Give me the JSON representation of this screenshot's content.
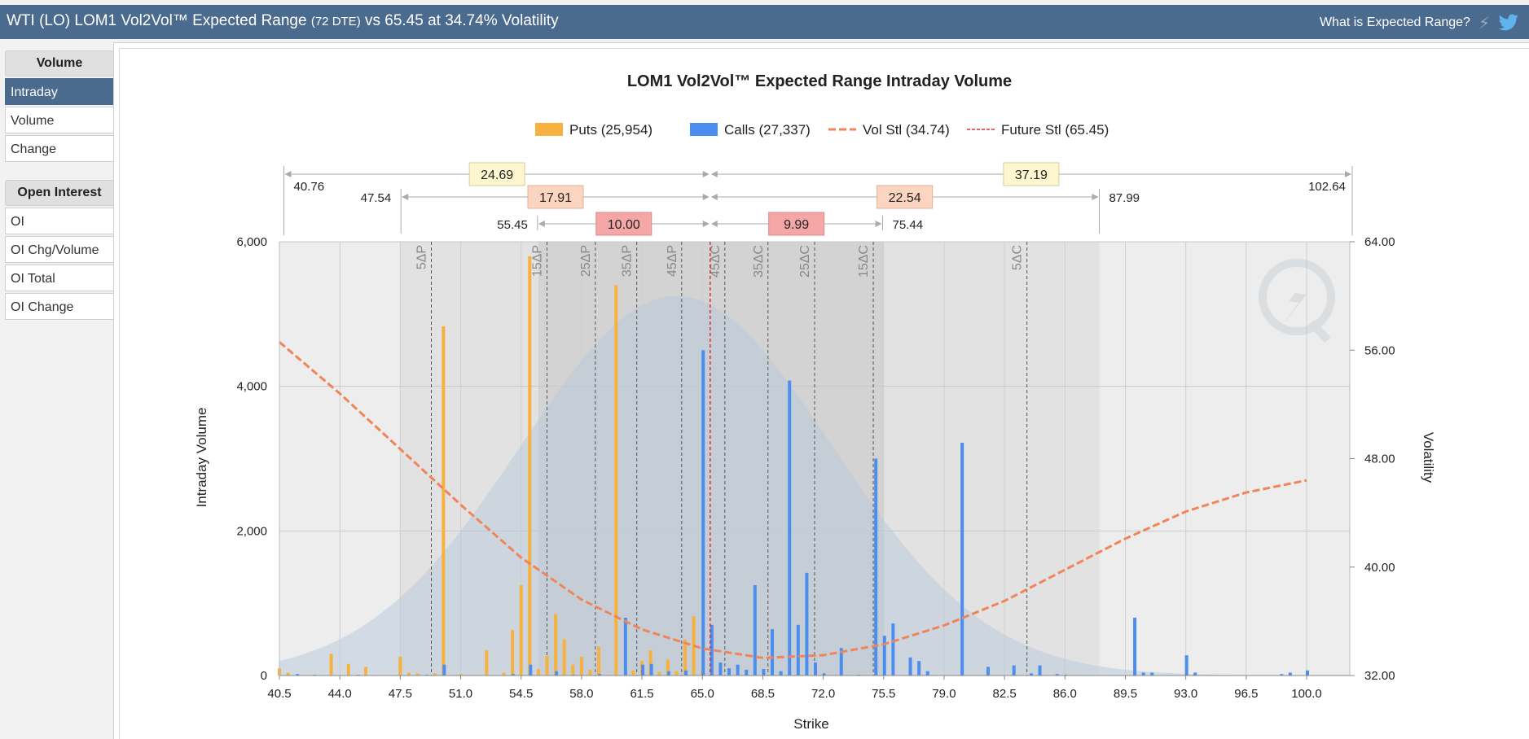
{
  "header": {
    "title_main": "WTI (LO) LOM1 Vol2Vol™ Expected Range",
    "title_dte": "(72 DTE)",
    "title_tail": "vs 65.45 at 34.74% Volatility",
    "help_link": "What is Expected Range?",
    "icons": [
      "lightning-icon",
      "twitter-bird-icon"
    ]
  },
  "sidebar": {
    "volume_title": "Volume",
    "volume_items": [
      "Intraday",
      "Volume",
      "Change"
    ],
    "active_item": "Intraday",
    "oi_title": "Open Interest",
    "oi_items": [
      "OI",
      "OI Chg/Volume",
      "OI Total",
      "OI Change"
    ]
  },
  "colors": {
    "puts": "#f7b13e",
    "calls": "#4b8ef0",
    "vol": "#f0845a",
    "future": "#e03030",
    "header": "#4a6a8e"
  },
  "chart_data": {
    "type": "bar",
    "title": "LOM1 Vol2Vol™ Expected Range Intraday Volume",
    "xlabel": "Strike",
    "ylabel": "Intraday Volume",
    "y2label": "Volatility",
    "xlim": [
      40.5,
      102.5
    ],
    "ylim": [
      0,
      6000
    ],
    "y2lim": [
      32,
      64
    ],
    "x_ticks": [
      "40.5",
      "44.0",
      "47.5",
      "51.0",
      "54.5",
      "58.0",
      "61.5",
      "65.0",
      "68.5",
      "72.0",
      "75.5",
      "79.0",
      "82.5",
      "86.0",
      "89.5",
      "93.0",
      "96.5",
      "100.0"
    ],
    "y_ticks": [
      "0",
      "2,000",
      "4,000",
      "6,000"
    ],
    "y2_ticks": [
      "32.00",
      "40.00",
      "48.00",
      "56.00",
      "64.00"
    ],
    "legend": [
      {
        "key": "puts",
        "label": "Puts (25,954)"
      },
      {
        "key": "calls",
        "label": "Calls (27,337)"
      },
      {
        "key": "vol",
        "label": "Vol Stl (34.74)"
      },
      {
        "key": "future",
        "label": "Future Stl (65.45)"
      }
    ],
    "future_settle": 65.45,
    "series": [
      {
        "name": "Puts",
        "points": [
          [
            40.5,
            100
          ],
          [
            41.0,
            40
          ],
          [
            43.5,
            300
          ],
          [
            44.5,
            160
          ],
          [
            45.5,
            120
          ],
          [
            47.5,
            260
          ],
          [
            48.0,
            40
          ],
          [
            48.5,
            30
          ],
          [
            49.5,
            30
          ],
          [
            50.0,
            4830
          ],
          [
            51.0,
            20
          ],
          [
            52.5,
            350
          ],
          [
            53.5,
            40
          ],
          [
            54.0,
            630
          ],
          [
            54.5,
            1250
          ],
          [
            55.0,
            5800
          ],
          [
            55.5,
            90
          ],
          [
            56.0,
            270
          ],
          [
            56.5,
            850
          ],
          [
            57.0,
            500
          ],
          [
            57.5,
            150
          ],
          [
            58.0,
            260
          ],
          [
            58.5,
            80
          ],
          [
            59.0,
            400
          ],
          [
            60.0,
            5400
          ],
          [
            61.0,
            70
          ],
          [
            61.5,
            200
          ],
          [
            62.0,
            350
          ],
          [
            62.5,
            50
          ],
          [
            63.0,
            220
          ],
          [
            63.5,
            60
          ],
          [
            64.0,
            500
          ],
          [
            64.5,
            820
          ],
          [
            65.0,
            70
          ]
        ]
      },
      {
        "name": "Calls",
        "points": [
          [
            41.5,
            20
          ],
          [
            42.5,
            10
          ],
          [
            45.0,
            10
          ],
          [
            49.0,
            10
          ],
          [
            50.0,
            150
          ],
          [
            54.0,
            20
          ],
          [
            55.0,
            150
          ],
          [
            56.5,
            60
          ],
          [
            57.5,
            10
          ],
          [
            59.0,
            20
          ],
          [
            60.5,
            800
          ],
          [
            61.5,
            150
          ],
          [
            62.0,
            160
          ],
          [
            63.0,
            60
          ],
          [
            64.0,
            70
          ],
          [
            65.0,
            4500
          ],
          [
            65.5,
            700
          ],
          [
            66.0,
            180
          ],
          [
            66.5,
            100
          ],
          [
            67.0,
            150
          ],
          [
            67.5,
            80
          ],
          [
            68.0,
            1250
          ],
          [
            68.5,
            90
          ],
          [
            69.0,
            640
          ],
          [
            69.5,
            60
          ],
          [
            70.0,
            4080
          ],
          [
            70.5,
            700
          ],
          [
            71.0,
            1420
          ],
          [
            71.5,
            180
          ],
          [
            72.0,
            30
          ],
          [
            73.0,
            380
          ],
          [
            74.0,
            10
          ],
          [
            75.0,
            3000
          ],
          [
            75.5,
            550
          ],
          [
            76.0,
            720
          ],
          [
            77.0,
            250
          ],
          [
            77.5,
            200
          ],
          [
            78.0,
            60
          ],
          [
            80.0,
            3220
          ],
          [
            81.5,
            120
          ],
          [
            83.0,
            140
          ],
          [
            84.0,
            30
          ],
          [
            84.5,
            140
          ],
          [
            85.5,
            20
          ],
          [
            86.0,
            10
          ],
          [
            90.0,
            800
          ],
          [
            90.5,
            40
          ],
          [
            91.0,
            40
          ],
          [
            93.0,
            280
          ],
          [
            93.5,
            40
          ],
          [
            98.5,
            20
          ],
          [
            99.0,
            40
          ],
          [
            100.0,
            70
          ]
        ]
      }
    ],
    "vol_curve": [
      [
        40.5,
        56.6
      ],
      [
        44.0,
        52.8
      ],
      [
        47.5,
        48.7
      ],
      [
        51.0,
        44.6
      ],
      [
        54.5,
        40.7
      ],
      [
        58.0,
        37.6
      ],
      [
        61.5,
        35.4
      ],
      [
        65.0,
        34.0
      ],
      [
        68.5,
        33.3
      ],
      [
        72.0,
        33.5
      ],
      [
        75.5,
        34.3
      ],
      [
        79.0,
        35.7
      ],
      [
        82.5,
        37.5
      ],
      [
        86.0,
        39.8
      ],
      [
        89.5,
        42.1
      ],
      [
        93.0,
        44.1
      ],
      [
        96.5,
        45.5
      ],
      [
        100.0,
        46.4
      ]
    ],
    "distribution": {
      "mean": 63.5,
      "peak_y": 5250,
      "sd": 9.0
    },
    "delta_lines": [
      {
        "label": "5ΔP",
        "x": 49.3
      },
      {
        "label": "15ΔP",
        "x": 56.0
      },
      {
        "label": "25ΔP",
        "x": 58.8
      },
      {
        "label": "35ΔP",
        "x": 61.2
      },
      {
        "label": "45ΔP",
        "x": 63.8
      },
      {
        "label": "45ΔC",
        "x": 66.3
      },
      {
        "label": "35ΔC",
        "x": 68.8
      },
      {
        "label": "25ΔC",
        "x": 71.5
      },
      {
        "label": "15ΔC",
        "x": 74.9
      },
      {
        "label": "5ΔC",
        "x": 83.8
      }
    ],
    "bands": [
      {
        "x0": 47.5,
        "x1": 88.0,
        "level": 1
      },
      {
        "x0": 55.5,
        "x1": 75.5,
        "level": 2
      }
    ],
    "ranges": [
      {
        "tier": 1,
        "lo": 40.76,
        "hi": 102.64,
        "lo_label": "40.76",
        "hi_label": "102.64",
        "left_width": "24.69",
        "right_width": "37.19"
      },
      {
        "tier": 2,
        "lo": 47.54,
        "hi": 87.99,
        "lo_label": "47.54",
        "hi_label": "87.99",
        "left_width": "17.91",
        "right_width": "22.54"
      },
      {
        "tier": 3,
        "lo": 55.45,
        "hi": 75.44,
        "lo_label": "55.45",
        "hi_label": "75.44",
        "left_width": "10.00",
        "right_width": "9.99"
      }
    ]
  }
}
